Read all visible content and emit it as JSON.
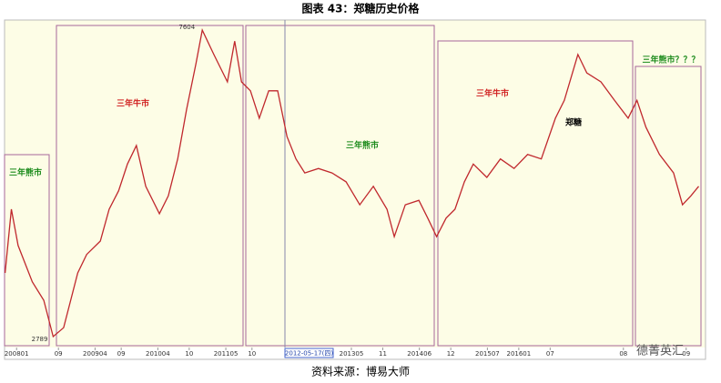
{
  "chart_data": {
    "type": "line",
    "title": "图表 43：郑糖历史价格",
    "source": "资料来源：博易大师",
    "watermark": "德菁英汇",
    "crosshair_label": "2012-05-17(四)",
    "annotations": [
      {
        "text": "三年熊市",
        "color": "#1a8a1a"
      },
      {
        "text": "三年牛市",
        "color": "#d02020"
      },
      {
        "text": "三年熊市",
        "color": "#1a8a1a"
      },
      {
        "text": "三年牛市",
        "color": "#d02020"
      },
      {
        "text": "三年熊市？？？",
        "color": "#1a8a1a"
      },
      {
        "text": "郑糖",
        "color": "#000000"
      }
    ],
    "x": [
      -2.2,
      -1.0,
      0.3,
      3.0,
      5.2,
      7.0,
      9.0,
      11.7,
      13.4,
      16.0,
      17.7,
      19.5,
      21.2,
      22.9,
      24.7,
      27.3,
      29.0,
      30.8,
      32.5,
      34.3,
      35.5,
      37.7,
      40.3,
      41.7,
      43.0,
      44.7,
      46.4,
      48.2,
      49.9,
      51.7,
      53.4,
      55.1,
      57.7,
      60.3,
      63.0,
      65.6,
      68.2,
      70.8,
      72.2,
      74.3,
      76.9,
      78.6,
      80.3,
      82.1,
      83.8,
      85.6,
      87.3,
      89.9,
      92.5,
      95.1,
      97.7,
      100.3,
      103.0,
      104.7,
      107.3,
      109.0,
      111.7,
      114.3,
      116.9,
      118.6,
      120.3,
      122.9,
      125.6,
      127.3,
      128.9,
      130.4
    ],
    "series": [
      {
        "color": "#c0282d",
        "values": [
          3790,
          4790,
          4220,
          3650,
          3360,
          2789,
          2930,
          3790,
          4080,
          4290,
          4790,
          5080,
          5500,
          5790,
          5150,
          4720,
          5000,
          5580,
          6360,
          7080,
          7604,
          7220,
          6790,
          7430,
          6790,
          6650,
          6220,
          6650,
          6650,
          5930,
          5580,
          5360,
          5430,
          5360,
          5220,
          4860,
          5150,
          4790,
          4360,
          4860,
          4930,
          4650,
          4360,
          4650,
          4790,
          5220,
          5500,
          5290,
          5580,
          5430,
          5650,
          5580,
          6220,
          6500,
          7220,
          6930,
          6790,
          6500,
          6220,
          6500,
          6080,
          5650,
          5360,
          4860,
          5000,
          5150
        ]
      }
    ],
    "xlim": [
      -2.3,
      131.7
    ],
    "ylim": [
      2618,
      7762
    ],
    "xticks": [
      {
        "value": 0,
        "label": "200801"
      },
      {
        "value": 8,
        "label": "09"
      },
      {
        "value": 15,
        "label": "200904"
      },
      {
        "value": 20,
        "label": "09"
      },
      {
        "value": 27,
        "label": "201004"
      },
      {
        "value": 33,
        "label": "10"
      },
      {
        "value": 40,
        "label": "201105"
      },
      {
        "value": 45,
        "label": "10"
      },
      {
        "value": 64,
        "label": "201305"
      },
      {
        "value": 70,
        "label": "11"
      },
      {
        "value": 77,
        "label": "201406"
      },
      {
        "value": 83,
        "label": "12"
      },
      {
        "value": 90,
        "label": "201507"
      },
      {
        "value": 96,
        "label": "201601"
      },
      {
        "value": 102,
        "label": "07"
      },
      {
        "value": 116,
        "label": "08"
      },
      {
        "value": 128,
        "label": "09"
      }
    ]
  }
}
